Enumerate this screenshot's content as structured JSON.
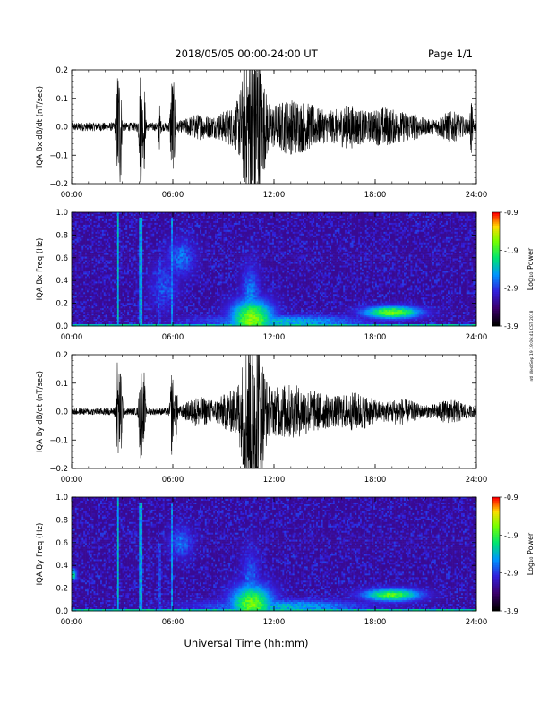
{
  "header": {
    "title": "2018/05/05   00:00-24:00 UT",
    "page_label": "Page 1/1"
  },
  "footer": {
    "xlabel": "Universal Time (hh:mm)",
    "side_stamp": "ntl Wed Sep 19 19:06:41 CST 2018"
  },
  "colorbar": {
    "label": "Log₁₀ Power",
    "ticks": [
      "-0.9",
      "-1.9",
      "-2.9",
      "-3.9"
    ]
  },
  "chart_data": [
    {
      "type": "line",
      "ylabel": "IQA Bx dB/dt (nT/sec)",
      "xlim_hours": [
        0,
        24
      ],
      "ylim": [
        -0.2,
        0.2
      ],
      "x_ticks": [
        "00:00",
        "06:00",
        "12:00",
        "18:00",
        "24:00"
      ],
      "y_ticks": [
        "0.2",
        "0.1",
        "0.0",
        "−0.1",
        "−0.2"
      ],
      "baseline_amplitude": 0.015,
      "bursts": [
        {
          "t": 2.75,
          "width": 0.08,
          "amp": 0.21
        },
        {
          "t": 2.9,
          "width": 0.05,
          "amp": 0.18
        },
        {
          "t": 4.1,
          "width": 0.07,
          "amp": 0.21
        },
        {
          "t": 4.3,
          "width": 0.05,
          "amp": 0.15
        },
        {
          "t": 5.2,
          "width": 0.05,
          "amp": 0.07
        },
        {
          "t": 5.95,
          "width": 0.07,
          "amp": 0.18
        },
        {
          "t": 6.1,
          "width": 0.05,
          "amp": 0.12
        },
        {
          "t": 7.5,
          "width": 0.6,
          "amp": 0.03
        },
        {
          "t": 9.5,
          "width": 0.7,
          "amp": 0.05
        },
        {
          "t": 10.5,
          "width": 0.35,
          "amp": 0.21
        },
        {
          "t": 11.0,
          "width": 0.35,
          "amp": 0.21
        },
        {
          "t": 12.5,
          "width": 1.0,
          "amp": 0.06
        },
        {
          "t": 14.0,
          "width": 1.0,
          "amp": 0.05
        },
        {
          "t": 16.5,
          "width": 0.8,
          "amp": 0.06
        },
        {
          "t": 18.5,
          "width": 0.6,
          "amp": 0.05
        },
        {
          "t": 20.0,
          "width": 0.7,
          "amp": 0.035
        },
        {
          "t": 22.5,
          "width": 0.6,
          "amp": 0.04
        },
        {
          "t": 23.7,
          "width": 0.05,
          "amp": 0.1
        }
      ]
    },
    {
      "type": "heatmap",
      "ylabel": "IQA Bx Freq (Hz)",
      "xlim_hours": [
        0,
        24
      ],
      "ylim": [
        0.0,
        1.0
      ],
      "x_ticks": [
        "00:00",
        "06:00",
        "12:00",
        "18:00",
        "24:00"
      ],
      "y_ticks": [
        "1.0",
        "0.8",
        "0.6",
        "0.4",
        "0.2",
        "0.0"
      ],
      "zlim": [
        -3.9,
        -0.9
      ],
      "background": -3.3,
      "features": [
        {
          "kind": "vline",
          "t": 2.75,
          "width": 0.08,
          "fmax": 1.0,
          "z": -2.4
        },
        {
          "kind": "vline",
          "t": 4.1,
          "width": 0.07,
          "fmax": 0.95,
          "z": -2.5
        },
        {
          "kind": "vline",
          "t": 5.2,
          "width": 0.05,
          "fmax": 0.6,
          "z": -2.9
        },
        {
          "kind": "vline",
          "t": 5.95,
          "width": 0.07,
          "fmax": 0.95,
          "z": -2.6
        },
        {
          "kind": "vline",
          "t": 23.7,
          "width": 0.05,
          "fmax": 0.5,
          "z": -2.9
        },
        {
          "kind": "band",
          "t0": 0,
          "t1": 24,
          "f0": 0.0,
          "f1": 0.02,
          "z": -2.3
        },
        {
          "kind": "blob",
          "t": 10.7,
          "f": 0.06,
          "st": 0.9,
          "sf": 0.12,
          "z": -1.6
        },
        {
          "kind": "blob",
          "t": 10.6,
          "f": 0.25,
          "st": 0.4,
          "sf": 0.2,
          "z": -2.6
        },
        {
          "kind": "blob",
          "t": 12.5,
          "f": 0.04,
          "st": 3.5,
          "sf": 0.04,
          "z": -2.4
        },
        {
          "kind": "blob",
          "t": 19.0,
          "f": 0.12,
          "st": 1.2,
          "sf": 0.04,
          "z": -1.7
        },
        {
          "kind": "blob",
          "t": 6.5,
          "f": 0.6,
          "st": 0.6,
          "sf": 0.12,
          "z": -2.7
        },
        {
          "kind": "blob",
          "t": 5.5,
          "f": 0.35,
          "st": 0.6,
          "sf": 0.15,
          "z": -2.8
        }
      ]
    },
    {
      "type": "line",
      "ylabel": "IQA By dB/dt (nT/sec)",
      "xlim_hours": [
        0,
        24
      ],
      "ylim": [
        -0.2,
        0.2
      ],
      "x_ticks": [
        "00:00",
        "06:00",
        "12:00",
        "18:00",
        "24:00"
      ],
      "y_ticks": [
        "0.2",
        "0.1",
        "0.0",
        "−0.1",
        "−0.2"
      ],
      "baseline_amplitude": 0.012,
      "bursts": [
        {
          "t": 2.75,
          "width": 0.08,
          "amp": 0.21
        },
        {
          "t": 2.95,
          "width": 0.05,
          "amp": 0.17
        },
        {
          "t": 4.1,
          "width": 0.07,
          "amp": 0.21
        },
        {
          "t": 4.3,
          "width": 0.05,
          "amp": 0.13
        },
        {
          "t": 5.95,
          "width": 0.07,
          "amp": 0.15
        },
        {
          "t": 6.2,
          "width": 0.05,
          "amp": 0.1
        },
        {
          "t": 7.5,
          "width": 0.6,
          "amp": 0.04
        },
        {
          "t": 9.5,
          "width": 0.7,
          "amp": 0.06
        },
        {
          "t": 10.5,
          "width": 0.35,
          "amp": 0.21
        },
        {
          "t": 11.0,
          "width": 0.35,
          "amp": 0.21
        },
        {
          "t": 12.5,
          "width": 1.0,
          "amp": 0.07
        },
        {
          "t": 14.5,
          "width": 1.2,
          "amp": 0.05
        },
        {
          "t": 17.0,
          "width": 0.8,
          "amp": 0.05
        },
        {
          "t": 19.5,
          "width": 0.8,
          "amp": 0.035
        },
        {
          "t": 22.5,
          "width": 0.8,
          "amp": 0.03
        }
      ]
    },
    {
      "type": "heatmap",
      "ylabel": "IQA By Freq (Hz)",
      "xlim_hours": [
        0,
        24
      ],
      "ylim": [
        0.0,
        1.0
      ],
      "x_ticks": [
        "00:00",
        "06:00",
        "12:00",
        "18:00",
        "24:00"
      ],
      "y_ticks": [
        "1.0",
        "0.8",
        "0.6",
        "0.4",
        "0.2",
        "0.0"
      ],
      "zlim": [
        -3.9,
        -0.9
      ],
      "background": -3.3,
      "features": [
        {
          "kind": "vline",
          "t": 2.75,
          "width": 0.08,
          "fmax": 1.0,
          "z": -2.4
        },
        {
          "kind": "vline",
          "t": 4.1,
          "width": 0.07,
          "fmax": 0.95,
          "z": -2.5
        },
        {
          "kind": "vline",
          "t": 5.2,
          "width": 0.05,
          "fmax": 0.6,
          "z": -2.9
        },
        {
          "kind": "vline",
          "t": 5.95,
          "width": 0.07,
          "fmax": 0.95,
          "z": -2.6
        },
        {
          "kind": "vline",
          "t": 23.7,
          "width": 0.05,
          "fmax": 0.5,
          "z": -2.9
        },
        {
          "kind": "band",
          "t0": 0,
          "t1": 24,
          "f0": 0.0,
          "f1": 0.02,
          "z": -2.3
        },
        {
          "kind": "blob",
          "t": 10.7,
          "f": 0.06,
          "st": 0.9,
          "sf": 0.12,
          "z": -1.7
        },
        {
          "kind": "blob",
          "t": 10.6,
          "f": 0.25,
          "st": 0.4,
          "sf": 0.2,
          "z": -2.7
        },
        {
          "kind": "blob",
          "t": 12.5,
          "f": 0.04,
          "st": 3.5,
          "sf": 0.04,
          "z": -2.4
        },
        {
          "kind": "blob",
          "t": 19.0,
          "f": 0.14,
          "st": 1.2,
          "sf": 0.04,
          "z": -1.8
        },
        {
          "kind": "blob",
          "t": 6.5,
          "f": 0.6,
          "st": 0.5,
          "sf": 0.1,
          "z": -2.7
        },
        {
          "kind": "blob",
          "t": 0.1,
          "f": 0.32,
          "st": 0.15,
          "sf": 0.04,
          "z": -2.2
        }
      ]
    }
  ]
}
